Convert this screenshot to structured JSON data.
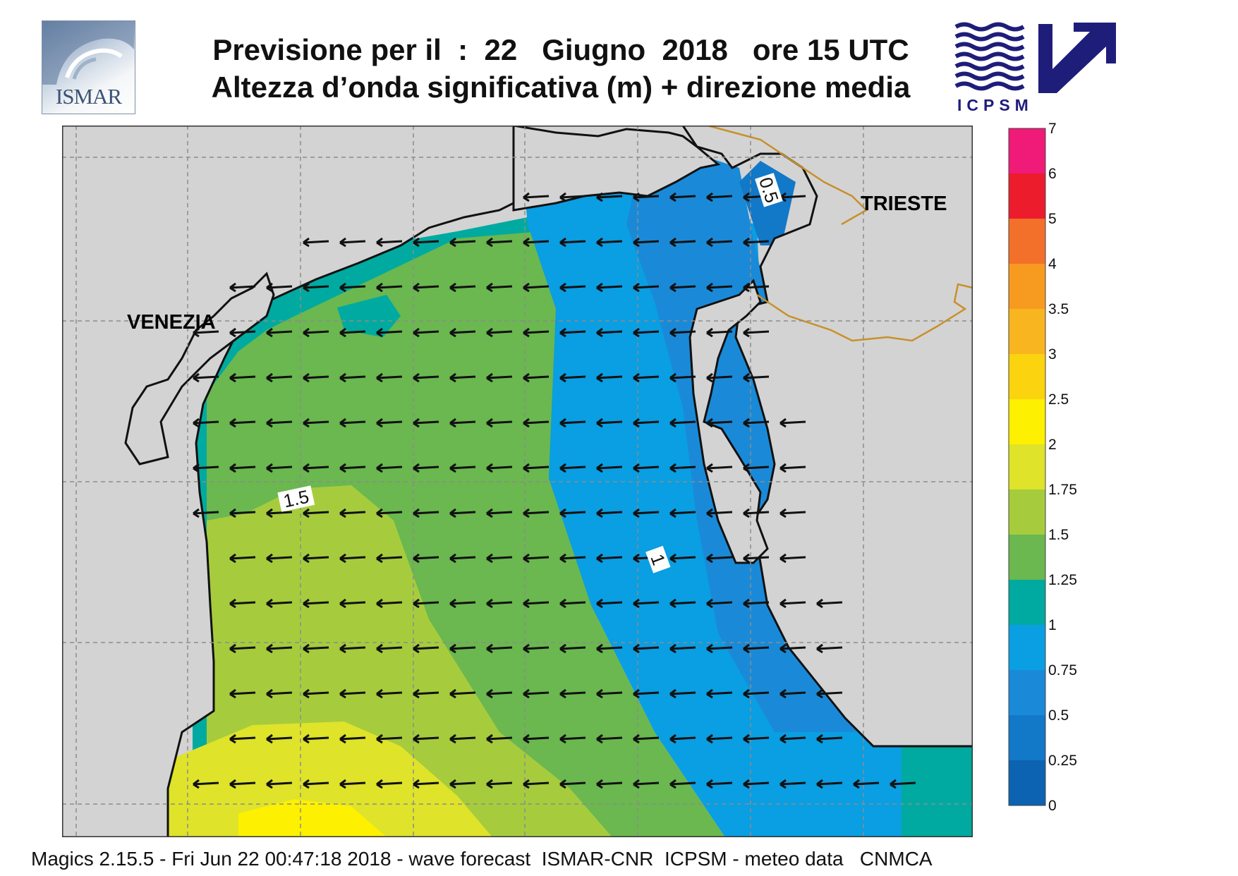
{
  "header": {
    "ismar_logo_text": "ISMAR",
    "title_line1": "Previsione per il  :  22   Giugno  2018   ore 15 UTC",
    "title_line2": "Altezza d’onda significativa (m) + direzione media",
    "icpsm_logo_text": "ICPSM"
  },
  "map": {
    "places": [
      {
        "name": "VENEZIA"
      },
      {
        "name": "TRIESTE"
      }
    ],
    "contour_labels": [
      "0.5",
      "1",
      "1.5"
    ],
    "colors": {
      "land": "#d3d3d3",
      "coast": "#111111",
      "border": "#c8902a",
      "grid": "#8c8c8c",
      "arrow": "#111111"
    },
    "mean_direction": "west"
  },
  "colorbar": {
    "title": "",
    "levels": [
      "7",
      "6",
      "5",
      "4",
      "3.5",
      "3",
      "2.5",
      "2",
      "1.75",
      "1.5",
      "1.25",
      "1",
      "0.75",
      "0.5",
      "0.25",
      "0"
    ],
    "colors": [
      "#f01a78",
      "#ec1c2c",
      "#f3702a",
      "#f79b20",
      "#f8b520",
      "#fbd30f",
      "#fdf000",
      "#dfe32a",
      "#a6cc3d",
      "#6ab84f",
      "#00aaa0",
      "#0a9ee3",
      "#1a8ad8",
      "#1278c8",
      "#0b63b1"
    ]
  },
  "footer": "Magics 2.15.5 - Fri Jun 22 00:47:18 2018 - wave forecast  ISMAR-CNR  ICPSM - meteo data   CNMCA"
}
